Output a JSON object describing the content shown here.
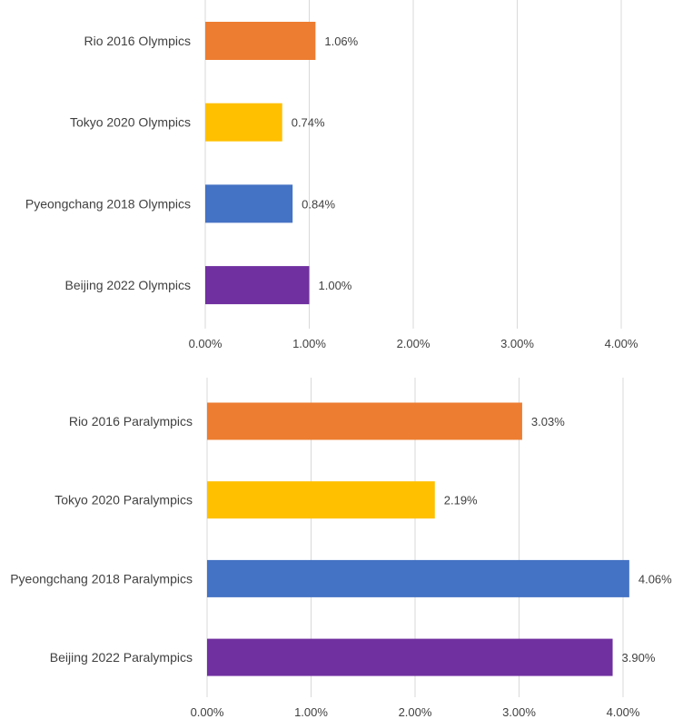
{
  "chart_data": [
    {
      "type": "bar",
      "orientation": "horizontal",
      "title": "",
      "xlabel": "",
      "ylabel": "",
      "xlim": [
        0,
        4.0
      ],
      "ticks": [
        "0.00%",
        "1.00%",
        "2.00%",
        "3.00%",
        "4.00%"
      ],
      "grid": true,
      "categories": [
        "Rio 2016 Olympics",
        "Tokyo 2020 Olympics",
        "Pyeongchang 2018 Olympics",
        "Beijing 2022 Olympics"
      ],
      "values": [
        1.06,
        0.74,
        0.84,
        1.0
      ],
      "labels": [
        "1.06%",
        "0.74%",
        "0.84%",
        "1.00%"
      ],
      "colors": [
        "#ed7d31",
        "#ffc000",
        "#4472c4",
        "#7030a0"
      ]
    },
    {
      "type": "bar",
      "orientation": "horizontal",
      "title": "",
      "xlabel": "",
      "ylabel": "",
      "xlim": [
        0,
        4.0
      ],
      "ticks": [
        "0.00%",
        "1.00%",
        "2.00%",
        "3.00%",
        "4.00%"
      ],
      "grid": true,
      "categories": [
        "Rio 2016 Paralympics",
        "Tokyo 2020 Paralympics",
        "Pyeongchang 2018 Paralympics",
        "Beijing 2022 Paralympics"
      ],
      "values": [
        3.03,
        2.19,
        4.06,
        3.9
      ],
      "labels": [
        "3.03%",
        "2.19%",
        "4.06%",
        "3.90%"
      ],
      "colors": [
        "#ed7d31",
        "#ffc000",
        "#4472c4",
        "#7030a0"
      ]
    }
  ]
}
